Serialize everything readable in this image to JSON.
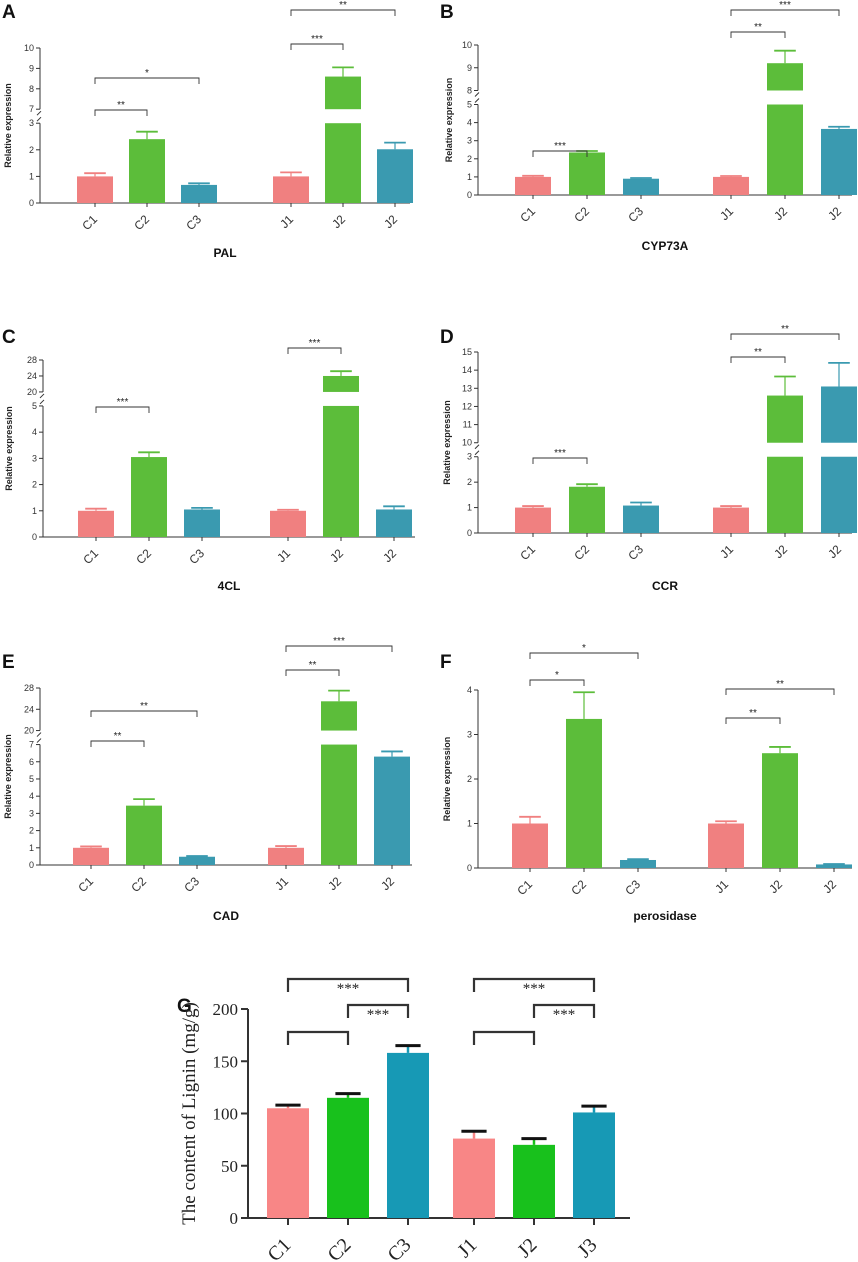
{
  "colors": {
    "C1": "#f08080",
    "C2": "#5cbd3a",
    "C3": "#3a9ab0",
    "G_C1": "#f88686",
    "G_C2": "#18c11c",
    "G_C3": "#1799b5"
  },
  "chart_data": [
    {
      "panel": "A",
      "type": "bar",
      "xlabel": "PAL",
      "ylabel": "Relative expression",
      "categories": [
        "C1",
        "C2",
        "C3",
        "J1",
        "J2",
        "J2"
      ],
      "values": [
        1.0,
        2.4,
        0.68,
        1.0,
        8.6,
        2.02
      ],
      "errors": [
        0.12,
        0.28,
        0.06,
        0.15,
        0.45,
        0.25
      ],
      "colors": [
        "C1",
        "C2",
        "C3",
        "C1",
        "C2",
        "C3"
      ],
      "break": {
        "low": 3,
        "high": 7
      },
      "ticks_low": [
        0,
        1,
        2,
        3
      ],
      "ticks_high": [
        7,
        8,
        9,
        10
      ],
      "ymax": 10,
      "annotations": [
        {
          "from": 0,
          "to": 1,
          "label": "**",
          "level": 0
        },
        {
          "from": 0,
          "to": 2,
          "label": "*",
          "level": 1
        },
        {
          "from": 3,
          "to": 4,
          "label": "***",
          "level": 0
        },
        {
          "from": 3,
          "to": 5,
          "label": "**",
          "level": 1
        }
      ]
    },
    {
      "panel": "B",
      "type": "bar",
      "xlabel": "CYP73A",
      "ylabel": "Relative expression",
      "categories": [
        "C1",
        "C2",
        "C3",
        "J1",
        "J2",
        "J2"
      ],
      "values": [
        1.0,
        2.35,
        0.9,
        1.0,
        9.2,
        3.65
      ],
      "errors": [
        0.06,
        0.08,
        0.04,
        0.05,
        0.55,
        0.12
      ],
      "colors": [
        "C1",
        "C2",
        "C3",
        "C1",
        "C2",
        "C3"
      ],
      "break": {
        "low": 5,
        "high": 8
      },
      "ticks_low": [
        0,
        1,
        2,
        3,
        4,
        5
      ],
      "ticks_high": [
        8,
        9,
        10
      ],
      "ymax": 10,
      "annotations": [
        {
          "from": 0,
          "to": 1,
          "label": "***",
          "level": 0
        },
        {
          "from": 3,
          "to": 4,
          "label": "**",
          "level": 0
        },
        {
          "from": 3,
          "to": 5,
          "label": "***",
          "level": 1
        }
      ]
    },
    {
      "panel": "C",
      "type": "bar",
      "xlabel": "4CL",
      "ylabel": "Relative expression",
      "categories": [
        "C1",
        "C2",
        "C3",
        "J1",
        "J2",
        "J2"
      ],
      "values": [
        1.0,
        3.05,
        1.05,
        1.0,
        24.0,
        1.05
      ],
      "errors": [
        0.08,
        0.18,
        0.06,
        0.04,
        1.2,
        0.12
      ],
      "colors": [
        "C1",
        "C2",
        "C3",
        "C1",
        "C2",
        "C3"
      ],
      "break": {
        "low": 5,
        "high": 20
      },
      "ticks_low": [
        0,
        1,
        2,
        3,
        4,
        5
      ],
      "ticks_high": [
        20,
        24,
        28
      ],
      "ymax": 28,
      "annotations": [
        {
          "from": 0,
          "to": 1,
          "label": "***",
          "level": 0
        },
        {
          "from": 3,
          "to": 4,
          "label": "***",
          "level": 0
        }
      ]
    },
    {
      "panel": "D",
      "type": "bar",
      "xlabel": "CCR",
      "ylabel": "Relative expression",
      "categories": [
        "C1",
        "C2",
        "C3",
        "J1",
        "J2",
        "J2"
      ],
      "values": [
        1.0,
        1.82,
        1.08,
        1.0,
        12.6,
        13.1
      ],
      "errors": [
        0.06,
        0.1,
        0.12,
        0.06,
        1.05,
        1.3
      ],
      "colors": [
        "C1",
        "C2",
        "C3",
        "C1",
        "C2",
        "C3"
      ],
      "break": {
        "low": 3,
        "high": 10
      },
      "ticks_low": [
        0,
        1,
        2,
        3
      ],
      "ticks_high": [
        10,
        11,
        12,
        13,
        14,
        15
      ],
      "ymax": 15,
      "annotations": [
        {
          "from": 0,
          "to": 1,
          "label": "***",
          "level": 0
        },
        {
          "from": 3,
          "to": 4,
          "label": "**",
          "level": 0
        },
        {
          "from": 3,
          "to": 5,
          "label": "**",
          "level": 1
        }
      ]
    },
    {
      "panel": "E",
      "type": "bar",
      "xlabel": "CAD",
      "ylabel": "Relative expression",
      "categories": [
        "C1",
        "C2",
        "C3",
        "J1",
        "J2",
        "J2"
      ],
      "values": [
        1.0,
        3.45,
        0.48,
        1.0,
        25.5,
        6.3
      ],
      "errors": [
        0.08,
        0.38,
        0.04,
        0.1,
        2.0,
        0.3
      ],
      "colors": [
        "C1",
        "C2",
        "C3",
        "C1",
        "C2",
        "C3"
      ],
      "break": {
        "low": 7,
        "high": 20
      },
      "ticks_low": [
        0,
        1,
        2,
        3,
        4,
        5,
        6,
        7
      ],
      "ticks_high": [
        20,
        24,
        28
      ],
      "ymax": 28,
      "annotations": [
        {
          "from": 0,
          "to": 1,
          "label": "**",
          "level": 0
        },
        {
          "from": 0,
          "to": 2,
          "label": "**",
          "level": 1
        },
        {
          "from": 3,
          "to": 4,
          "label": "**",
          "level": 0
        },
        {
          "from": 3,
          "to": 5,
          "label": "***",
          "level": 1
        }
      ]
    },
    {
      "panel": "F",
      "type": "bar",
      "xlabel": "perosidase",
      "ylabel": "Relative expression",
      "categories": [
        "C1",
        "C2",
        "C3",
        "J1",
        "J2",
        "J2"
      ],
      "values": [
        1.0,
        3.35,
        0.18,
        1.0,
        2.58,
        0.08
      ],
      "errors": [
        0.15,
        0.6,
        0.02,
        0.05,
        0.14,
        0.01
      ],
      "colors": [
        "C1",
        "C2",
        "C3",
        "C1",
        "C2",
        "C3"
      ],
      "break": null,
      "ticks_low": [
        0,
        1,
        2,
        3,
        4
      ],
      "ticks_high": [],
      "ymax": 4,
      "annotations": [
        {
          "from": 0,
          "to": 1,
          "label": "*",
          "level": 0
        },
        {
          "from": 0,
          "to": 2,
          "label": "*",
          "level": 1
        },
        {
          "from": 3,
          "to": 4,
          "label": "**",
          "level": 0
        },
        {
          "from": 3,
          "to": 5,
          "label": "**",
          "level": 1
        }
      ]
    },
    {
      "panel": "G",
      "type": "bar",
      "xlabel": "",
      "ylabel": "The content of Lignin (mg/g)",
      "categories": [
        "C1",
        "C2",
        "C3",
        "J1",
        "J2",
        "J3"
      ],
      "values": [
        105,
        115,
        158,
        76,
        70,
        101
      ],
      "errors": [
        3,
        4,
        7,
        7,
        6,
        6
      ],
      "colors": [
        "G_C1",
        "G_C2",
        "G_C3",
        "G_C1",
        "G_C2",
        "G_C3"
      ],
      "break": null,
      "ticks_low": [
        0,
        50,
        100,
        150,
        200
      ],
      "ticks_high": [],
      "ymax": 200,
      "annotations": [
        {
          "from": 0,
          "to": 2,
          "label": "***",
          "level": 2
        },
        {
          "from": 1,
          "to": 2,
          "label": "***",
          "level": 1
        },
        {
          "from": 0,
          "to": 1,
          "label": "",
          "level": 0
        },
        {
          "from": 3,
          "to": 5,
          "label": "***",
          "level": 2
        },
        {
          "from": 4,
          "to": 5,
          "label": "***",
          "level": 1
        },
        {
          "from": 3,
          "to": 4,
          "label": "",
          "level": 0
        }
      ]
    }
  ]
}
